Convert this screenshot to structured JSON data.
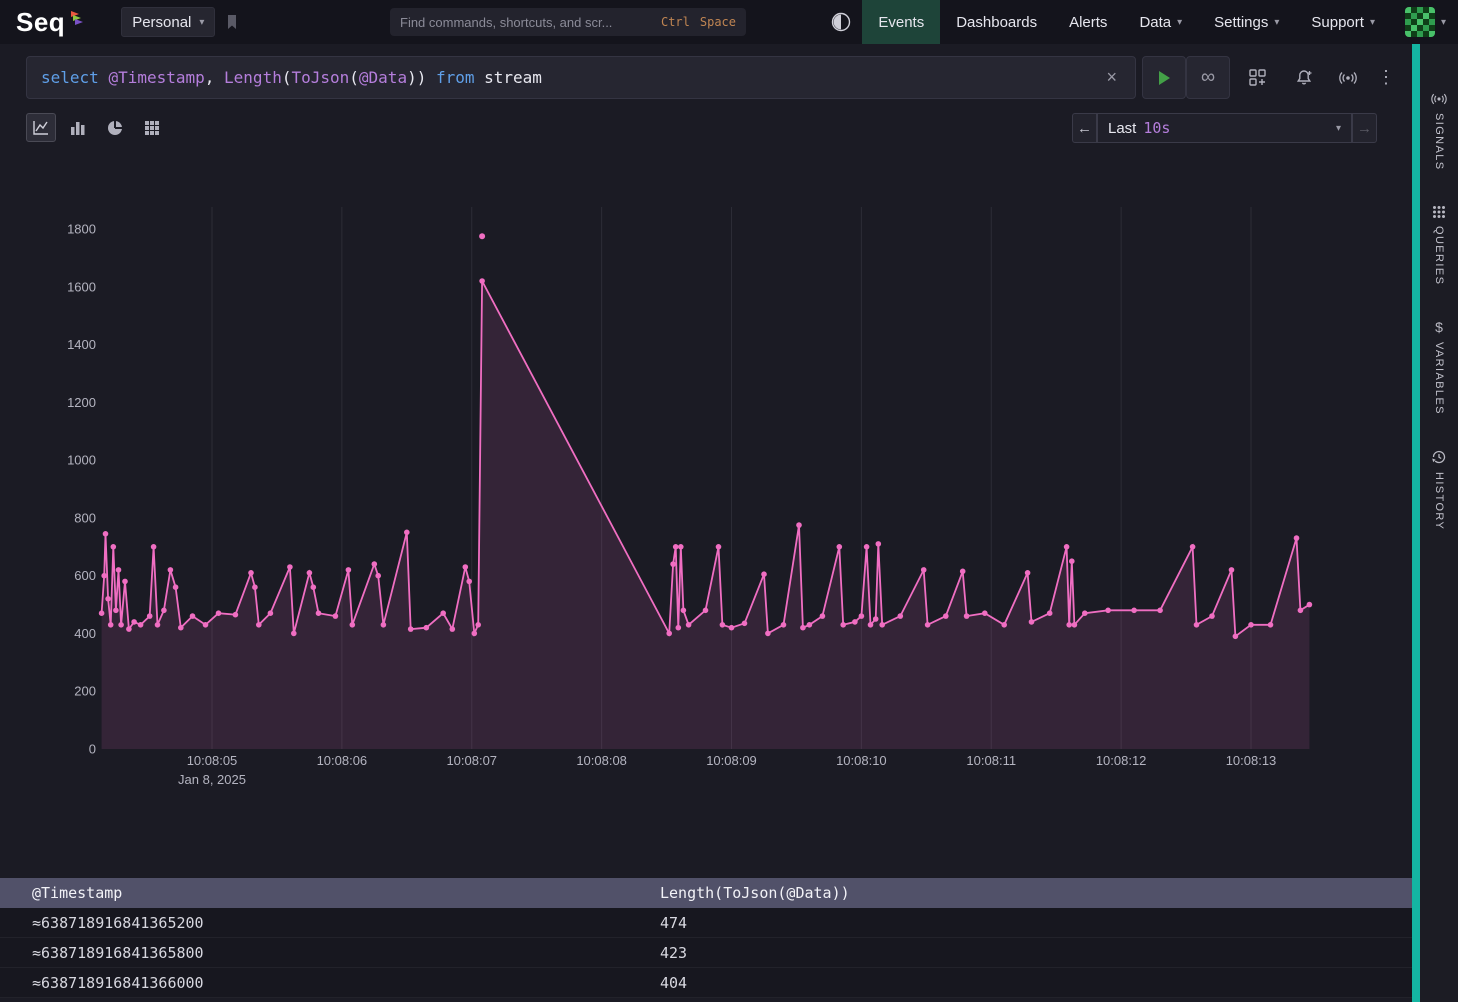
{
  "navbar": {
    "logo": "Seq",
    "workspace": "Personal",
    "search_placeholder": "Find commands, shortcuts, and scr...",
    "search_hint_keys": [
      "Ctrl",
      "Space"
    ],
    "items": [
      {
        "label": "Events",
        "active": true,
        "has_chevron": false
      },
      {
        "label": "Dashboards",
        "active": false,
        "has_chevron": false
      },
      {
        "label": "Alerts",
        "active": false,
        "has_chevron": false
      },
      {
        "label": "Data",
        "active": false,
        "has_chevron": true
      },
      {
        "label": "Settings",
        "active": false,
        "has_chevron": true
      },
      {
        "label": "Support",
        "active": false,
        "has_chevron": true
      }
    ]
  },
  "query_bar": {
    "tokens": [
      {
        "text": "select ",
        "type": "kw"
      },
      {
        "text": "@Timestamp",
        "type": "var"
      },
      {
        "text": ", ",
        "type": "plain"
      },
      {
        "text": "Length",
        "type": "fn"
      },
      {
        "text": "(",
        "type": "plain"
      },
      {
        "text": "ToJson",
        "type": "fn"
      },
      {
        "text": "(",
        "type": "plain"
      },
      {
        "text": "@Data",
        "type": "var"
      },
      {
        "text": "))",
        "type": "plain"
      },
      {
        "text": " from ",
        "type": "kw"
      },
      {
        "text": "stream",
        "type": "plain"
      }
    ]
  },
  "time_range": {
    "prefix": "Last",
    "value": "10s"
  },
  "icons": {
    "chevron_down": "▾",
    "clear": "×",
    "follow": "∞",
    "kebab": "⋮",
    "back_arrow": "←",
    "forward_arrow": "→",
    "variables_glyph": "$"
  },
  "chart_data": {
    "type": "line",
    "title": "",
    "series_name": "Length(ToJson(@Data))",
    "xlabel": "",
    "ylabel": "",
    "x_date_label": "Jan 8, 2025",
    "x_ticks": [
      {
        "t": 5,
        "label": "10:08:05"
      },
      {
        "t": 6,
        "label": "10:08:06"
      },
      {
        "t": 7,
        "label": "10:08:07"
      },
      {
        "t": 8,
        "label": "10:08:08"
      },
      {
        "t": 9,
        "label": "10:08:09"
      },
      {
        "t": 10,
        "label": "10:08:10"
      },
      {
        "t": 11,
        "label": "10:08:11"
      },
      {
        "t": 12,
        "label": "10:08:12"
      },
      {
        "t": 13,
        "label": "10:08:13"
      }
    ],
    "x_range": [
      4.1,
      13.5
    ],
    "y_range": [
      0,
      1800
    ],
    "y_tick_step": 200,
    "grid": "vertical",
    "legend": "none",
    "line_color": "#f06ec2",
    "fill_opacity": 0.12,
    "points": [
      [
        4.15,
        470
      ],
      [
        4.17,
        600
      ],
      [
        4.18,
        745
      ],
      [
        4.2,
        520
      ],
      [
        4.22,
        430
      ],
      [
        4.24,
        700
      ],
      [
        4.26,
        480
      ],
      [
        4.28,
        620
      ],
      [
        4.3,
        430
      ],
      [
        4.33,
        580
      ],
      [
        4.36,
        415
      ],
      [
        4.4,
        440
      ],
      [
        4.45,
        430
      ],
      [
        4.52,
        460
      ],
      [
        4.55,
        700
      ],
      [
        4.58,
        430
      ],
      [
        4.63,
        480
      ],
      [
        4.68,
        620
      ],
      [
        4.72,
        560
      ],
      [
        4.76,
        420
      ],
      [
        4.85,
        460
      ],
      [
        4.95,
        430
      ],
      [
        5.05,
        470
      ],
      [
        5.18,
        465
      ],
      [
        5.3,
        610
      ],
      [
        5.33,
        560
      ],
      [
        5.36,
        430
      ],
      [
        5.45,
        470
      ],
      [
        5.6,
        630
      ],
      [
        5.63,
        400
      ],
      [
        5.75,
        610
      ],
      [
        5.78,
        560
      ],
      [
        5.82,
        470
      ],
      [
        5.95,
        460
      ],
      [
        6.05,
        620
      ],
      [
        6.08,
        430
      ],
      [
        6.25,
        640
      ],
      [
        6.28,
        600
      ],
      [
        6.32,
        430
      ],
      [
        6.5,
        750
      ],
      [
        6.53,
        415
      ],
      [
        6.65,
        420
      ],
      [
        6.78,
        470
      ],
      [
        6.85,
        415
      ],
      [
        6.95,
        630
      ],
      [
        6.98,
        580
      ],
      [
        7.02,
        400
      ],
      [
        7.05,
        430
      ],
      [
        7.08,
        1620
      ],
      [
        8.52,
        400
      ],
      [
        8.55,
        640
      ],
      [
        8.57,
        700
      ],
      [
        8.59,
        420
      ],
      [
        8.61,
        700
      ],
      [
        8.63,
        480
      ],
      [
        8.67,
        430
      ],
      [
        8.8,
        480
      ],
      [
        8.9,
        700
      ],
      [
        8.93,
        430
      ],
      [
        9.0,
        420
      ],
      [
        9.1,
        435
      ],
      [
        9.25,
        605
      ],
      [
        9.28,
        400
      ],
      [
        9.4,
        430
      ],
      [
        9.52,
        775
      ],
      [
        9.55,
        420
      ],
      [
        9.6,
        430
      ],
      [
        9.7,
        460
      ],
      [
        9.83,
        700
      ],
      [
        9.86,
        430
      ],
      [
        9.95,
        440
      ],
      [
        10.0,
        460
      ],
      [
        10.04,
        700
      ],
      [
        10.07,
        430
      ],
      [
        10.11,
        450
      ],
      [
        10.13,
        710
      ],
      [
        10.16,
        430
      ],
      [
        10.3,
        460
      ],
      [
        10.48,
        620
      ],
      [
        10.51,
        430
      ],
      [
        10.65,
        460
      ],
      [
        10.78,
        615
      ],
      [
        10.81,
        460
      ],
      [
        10.95,
        470
      ],
      [
        11.1,
        430
      ],
      [
        11.28,
        610
      ],
      [
        11.31,
        440
      ],
      [
        11.45,
        470
      ],
      [
        11.58,
        700
      ],
      [
        11.6,
        430
      ],
      [
        11.62,
        650
      ],
      [
        11.64,
        430
      ],
      [
        11.72,
        470
      ],
      [
        11.9,
        480
      ],
      [
        12.1,
        480
      ],
      [
        12.3,
        480
      ],
      [
        12.55,
        700
      ],
      [
        12.58,
        430
      ],
      [
        12.7,
        460
      ],
      [
        12.85,
        620
      ],
      [
        12.88,
        390
      ],
      [
        13.0,
        430
      ],
      [
        13.15,
        430
      ],
      [
        13.35,
        730
      ],
      [
        13.38,
        480
      ],
      [
        13.45,
        500
      ]
    ],
    "outlier_points": [
      [
        7.08,
        1775
      ]
    ]
  },
  "table": {
    "columns": [
      "@Timestamp",
      "Length(ToJson(@Data))"
    ],
    "rows": [
      [
        "≈638718916841365200",
        "474"
      ],
      [
        "≈638718916841365800",
        "423"
      ],
      [
        "≈638718916841366000",
        "404"
      ]
    ]
  },
  "right_rail": {
    "items": [
      {
        "label": "SIGNALS"
      },
      {
        "label": "QUERIES"
      },
      {
        "label": "VARIABLES"
      },
      {
        "label": "HISTORY"
      }
    ]
  },
  "colors": {
    "accent_teal": "#14b5a2",
    "line_pink": "#f06ec2",
    "keyword_blue": "#5f9fe8",
    "variable_purple": "#b57edc",
    "play_green": "#43a047",
    "hint_orange": "#c08552",
    "active_tab_green": "#1e4439",
    "table_header_bg": "#515169"
  }
}
